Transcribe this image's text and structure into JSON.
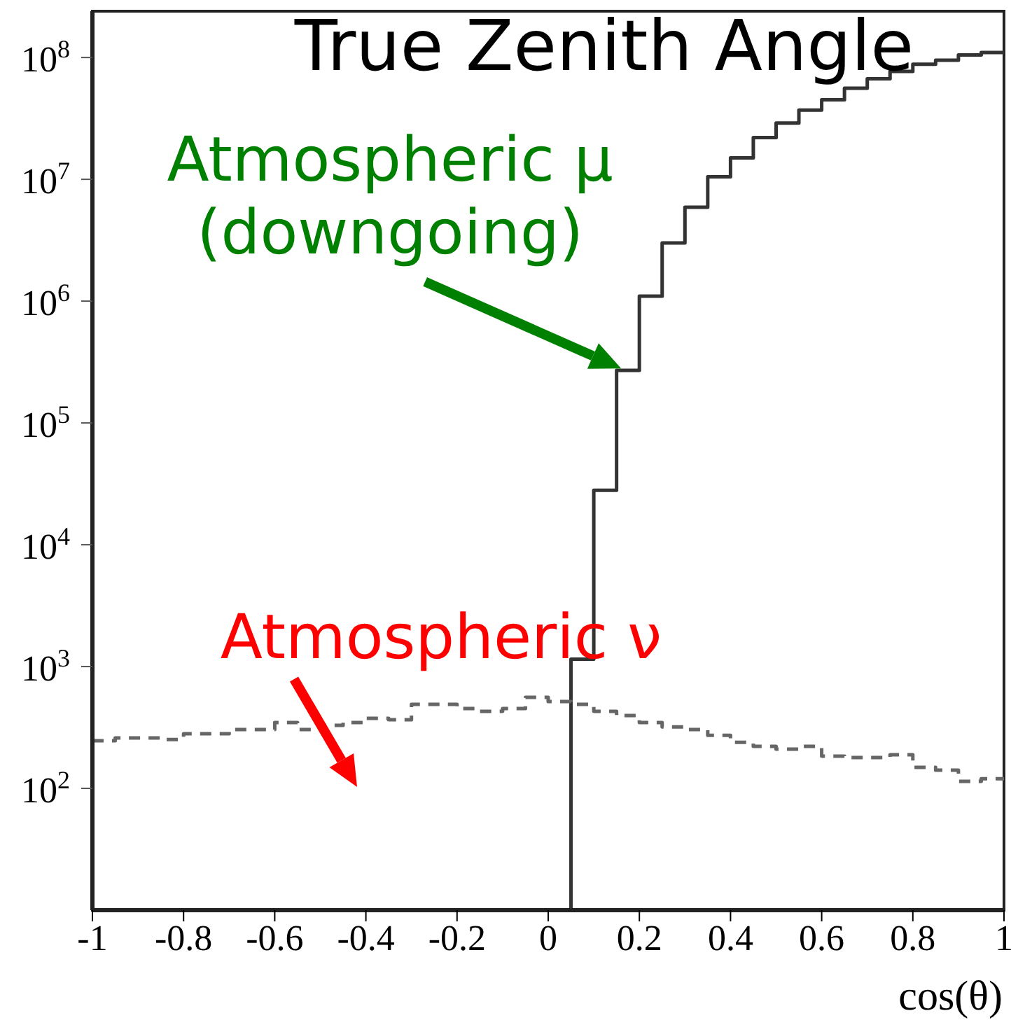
{
  "chart_data": {
    "type": "histogram",
    "title": "True Zenith Angle",
    "xlabel": "cos(θ)",
    "bins": [
      -1,
      -0.95,
      -0.9,
      -0.85,
      -0.8,
      -0.75,
      -0.7,
      -0.65,
      -0.6,
      -0.55,
      -0.5,
      -0.45,
      -0.4,
      -0.35,
      -0.3,
      -0.25,
      -0.2,
      -0.15,
      -0.1,
      -0.05,
      0,
      0.05,
      0.1,
      0.15,
      0.2,
      0.25,
      0.3,
      0.35,
      0.4,
      0.45,
      0.5,
      0.55,
      0.6,
      0.65,
      0.7,
      0.75,
      0.8,
      0.85,
      0.9,
      0.95,
      1
    ],
    "series": [
      {
        "color": "#333333",
        "line_style": "solid",
        "bins": [
          0.05,
          0.1,
          0.15,
          0.2,
          0.25,
          0.3,
          0.35,
          0.4,
          0.45,
          0.5,
          0.55,
          0.6,
          0.65,
          0.7,
          0.75,
          0.8,
          0.85,
          0.9,
          0.95,
          1
        ],
        "values": [
          1150,
          28000,
          270000,
          1100000,
          3000000,
          5900000,
          10500000,
          15000000,
          22000000,
          29000000,
          37000000,
          45000000,
          56000000,
          67000000,
          77000000,
          88000000,
          95000000,
          105000000,
          110000000
        ]
      },
      {
        "color": "#666666",
        "line_style": "dashed",
        "values": [
          246,
          259,
          259,
          252,
          281,
          281,
          304,
          304,
          347,
          304,
          329,
          347,
          376,
          366,
          490,
          490,
          452,
          429,
          452,
          558,
          516,
          490,
          429,
          396,
          347,
          320,
          304,
          273,
          239,
          221,
          210,
          221,
          184,
          179,
          179,
          189,
          149,
          141,
          114,
          120
        ]
      }
    ],
    "xlim": [
      -1,
      1
    ],
    "xticks": [
      -1,
      -0.8,
      -0.6,
      -0.4,
      -0.2,
      0,
      0.2,
      0.4,
      0.6,
      0.8,
      1
    ],
    "ylim": [
      10,
      240000000
    ],
    "log": "y",
    "yticks": [
      {
        "value": 100,
        "label": "10$^{2}$"
      },
      {
        "value": 1000,
        "label": "10$^{3}$"
      },
      {
        "value": 10000,
        "label": "10$^{4}$"
      },
      {
        "value": 100000,
        "label": "10$^{5}$"
      },
      {
        "value": 1000000,
        "label": "10$^{6}$"
      },
      {
        "value": 10000000,
        "label": "10$^{7}$"
      },
      {
        "value": 100000000,
        "label": "10$^{8}$"
      }
    ],
    "grid": false,
    "legend": false,
    "annotations": [
      {
        "text": "Atmospheric μ (downgoing)",
        "x": 0.16,
        "y": 280000
      },
      "Atmospheric ν"
    ]
  }
}
